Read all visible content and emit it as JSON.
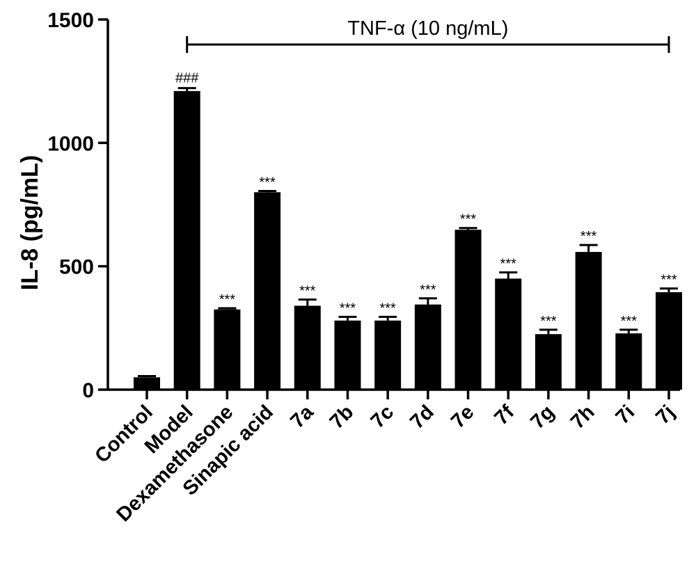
{
  "chart_data": {
    "type": "bar",
    "title": "",
    "xlabel": "",
    "ylabel": "IL-8 (pg/mL)",
    "ylim": [
      0,
      1500
    ],
    "yticks": [
      0,
      500,
      1000,
      1500
    ],
    "grid": false,
    "legend": "none",
    "bar_color": "#000000",
    "categories": [
      "Control",
      "Model",
      "Dexamethasone",
      "Sinapic acid",
      "7a",
      "7b",
      "7c",
      "7d",
      "7e",
      "7f",
      "7g",
      "7h",
      "7i",
      "7j"
    ],
    "series": [
      {
        "values": [
          50,
          1210,
          325,
          800,
          340,
          280,
          280,
          345,
          648,
          450,
          225,
          558,
          228,
          395
        ],
        "errors": [
          5,
          12,
          5,
          5,
          25,
          15,
          15,
          25,
          7,
          25,
          18,
          28,
          15,
          15
        ]
      }
    ],
    "significance": [
      "",
      "###",
      "***",
      "***",
      "***",
      "***",
      "***",
      "***",
      "***",
      "***",
      "***",
      "***",
      "***",
      "***"
    ],
    "treatment_bracket": {
      "label": "TNF-α (10 ng/mL)",
      "from": "Model",
      "to": "7j"
    }
  }
}
